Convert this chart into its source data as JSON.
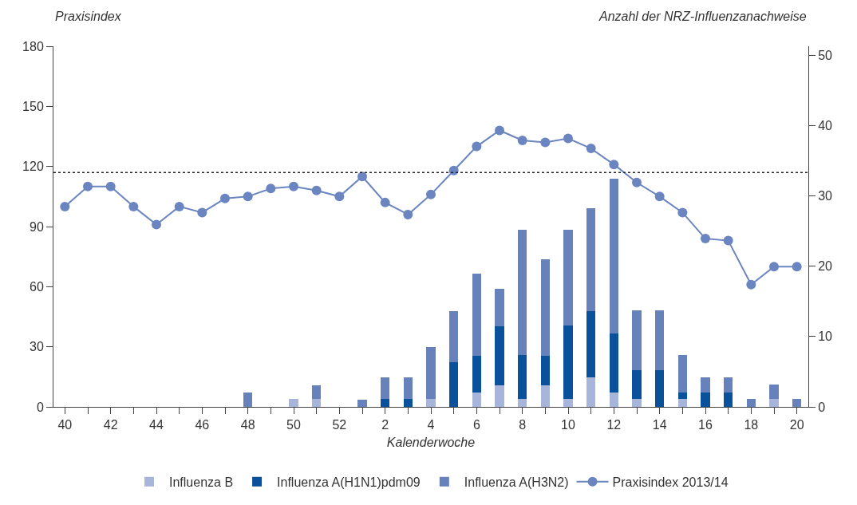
{
  "chart_data": {
    "type": "bar",
    "stacked": true,
    "ylabel": "Praxisindex",
    "y2label": "Anzahl der NRZ-Influenzanachweise",
    "xlabel": "Kalenderwoche",
    "categories": [
      "40",
      null,
      "42",
      null,
      "44",
      null,
      "46",
      null,
      "48",
      null,
      "50",
      null,
      "52",
      null,
      "2",
      null,
      "4",
      null,
      "6",
      null,
      "8",
      null,
      "10",
      null,
      "12",
      null,
      "14",
      null,
      "16",
      null,
      "18",
      null,
      "20"
    ],
    "series": [
      {
        "name": "Influenza B",
        "color": "#a8b5db",
        "axis": "y2",
        "values": [
          0,
          0,
          0,
          0,
          0,
          0,
          0,
          0,
          0,
          0,
          1.1,
          1.1,
          0,
          0,
          0,
          0,
          1.1,
          0,
          2.1,
          3.1,
          1.1,
          3.1,
          1.1,
          4.2,
          2.1,
          1.1,
          0,
          1.1,
          0,
          0,
          0,
          1.1,
          0
        ]
      },
      {
        "name": "Influenza A(H1N1)pdm09",
        "color": "#0a519c",
        "axis": "y2",
        "values": [
          0,
          0,
          0,
          0,
          0,
          0,
          0,
          0,
          0,
          0,
          0,
          0,
          0,
          0,
          1.1,
          1.1,
          0,
          6.3,
          5.2,
          8.4,
          6.3,
          4.2,
          10.5,
          9.4,
          8.3,
          4.1,
          5.2,
          1.0,
          2.1,
          2.1,
          0,
          0,
          0
        ]
      },
      {
        "name": "Influenza A(H3N2)",
        "color": "#6781bb",
        "axis": "y2",
        "values": [
          0,
          0,
          0,
          0,
          0,
          0,
          0,
          0,
          2.1,
          0,
          0,
          2.0,
          0,
          1.0,
          3.1,
          3.1,
          7.4,
          7.3,
          11.6,
          5.3,
          17.8,
          13.7,
          13.6,
          14.7,
          22.1,
          8.5,
          8.5,
          5.3,
          2.1,
          2.1,
          1.1,
          2.1,
          1.1
        ]
      },
      {
        "name": "Praxisindex 2013/14",
        "type": "line",
        "color": "#6a85c0",
        "marker": "circle",
        "line_style": "solid",
        "values": [
          100,
          110,
          110,
          100,
          91,
          100,
          97,
          104,
          105,
          109,
          110,
          108,
          105,
          115,
          102,
          96,
          106,
          118,
          130,
          138,
          133,
          132,
          134,
          129,
          121,
          112,
          105,
          97,
          84,
          83,
          61,
          70,
          70
        ]
      }
    ],
    "ylim": [
      0,
      180
    ],
    "yticks": [
      0,
      30,
      60,
      90,
      120,
      150,
      180
    ],
    "y2lim": [
      0,
      51.3
    ],
    "y2ticks": [
      0,
      10,
      20,
      30,
      40,
      50
    ],
    "ref_lines": [
      {
        "axis": "y",
        "value": 117,
        "color": "#222222",
        "line_style": "dotted"
      }
    ],
    "grid": false,
    "legend": "bottom"
  }
}
